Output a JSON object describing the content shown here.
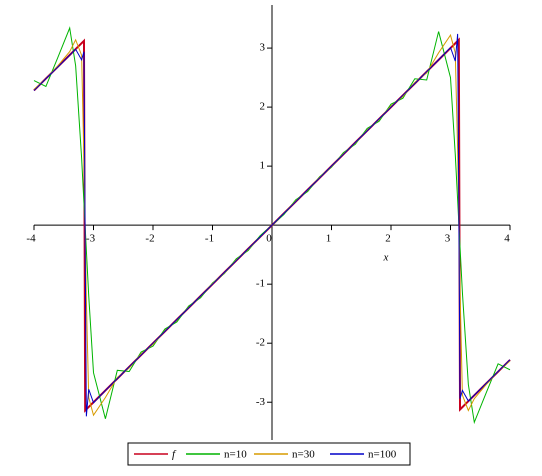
{
  "chart_data": {
    "type": "line",
    "x_label": "x",
    "x": [
      -4,
      -3.8,
      -3.6,
      -3.4,
      -3.3,
      -3.2,
      -3.16,
      -3.14,
      -3.12,
      -3.08,
      -3,
      -2.8,
      -2.6,
      -2.4,
      -2.2,
      -2,
      -1.8,
      -1.6,
      -1.4,
      -1.2,
      -1,
      -0.8,
      -0.6,
      -0.4,
      -0.2,
      0,
      0.2,
      0.4,
      0.6,
      0.8,
      1,
      1.2,
      1.4,
      1.6,
      1.8,
      2,
      2.2,
      2.4,
      2.6,
      2.8,
      3,
      3.08,
      3.12,
      3.14,
      3.16,
      3.2,
      3.3,
      3.4,
      3.6,
      3.8,
      4
    ],
    "series": [
      {
        "name": "f",
        "color": "#c8001e",
        "values": [
          2.283,
          2.483,
          2.683,
          2.883,
          2.983,
          3.083,
          3.123,
          -3.14,
          -3.12,
          -3.08,
          -3,
          -2.8,
          -2.6,
          -2.4,
          -2.2,
          -2,
          -1.8,
          -1.6,
          -1.4,
          -1.2,
          -1,
          -0.8,
          -0.6,
          -0.4,
          -0.2,
          0,
          0.2,
          0.4,
          0.6,
          0.8,
          1,
          1.2,
          1.4,
          1.6,
          1.8,
          2,
          2.2,
          2.4,
          2.6,
          2.8,
          3,
          3.08,
          3.12,
          3.14,
          -3.123,
          -3.083,
          -2.983,
          -2.883,
          -2.683,
          -2.483,
          -2.283
        ]
      },
      {
        "name": "n=10",
        "color": "#00b400",
        "values": [
          2.45,
          2.35,
          2.84,
          3.34,
          2.7,
          1.14,
          0.37,
          -0.03,
          -0.43,
          -1.2,
          -2.5,
          -3.28,
          -2.46,
          -2.48,
          -2.15,
          -2.05,
          -1.76,
          -1.64,
          -1.37,
          -1.23,
          -0.98,
          -0.82,
          -0.57,
          -0.43,
          -0.18,
          0,
          0.18,
          0.43,
          0.57,
          0.82,
          0.98,
          1.23,
          1.37,
          1.64,
          1.76,
          2.05,
          2.15,
          2.48,
          2.46,
          3.28,
          2.5,
          1.2,
          0.43,
          0.03,
          -0.37,
          -1.14,
          -2.7,
          -3.34,
          -2.84,
          -2.35,
          -2.45
        ]
      },
      {
        "name": "n=30",
        "color": "#d79b00",
        "values": [
          2.3,
          2.48,
          2.7,
          2.94,
          3.14,
          2.88,
          1.08,
          -0.1,
          -1.27,
          -2.92,
          -3.22,
          -2.92,
          -2.58,
          -2.42,
          -2.18,
          -2.02,
          -1.79,
          -1.61,
          -1.39,
          -1.21,
          -0.99,
          -0.81,
          -0.59,
          -0.41,
          -0.2,
          0,
          0.2,
          0.41,
          0.59,
          0.81,
          0.99,
          1.21,
          1.39,
          1.61,
          1.79,
          2.02,
          2.18,
          2.42,
          2.58,
          2.92,
          3.22,
          2.92,
          1.27,
          0.1,
          -1.08,
          -2.88,
          -3.14,
          -2.94,
          -2.7,
          -2.48,
          -2.3
        ]
      },
      {
        "name": "n=100",
        "color": "#0000c8",
        "values": [
          2.28,
          2.48,
          2.68,
          2.88,
          2.98,
          2.8,
          2.94,
          -0.32,
          -3.24,
          -2.78,
          -3.01,
          -2.8,
          -2.6,
          -2.4,
          -2.2,
          -2,
          -1.8,
          -1.6,
          -1.4,
          -1.2,
          -1,
          -0.8,
          -0.6,
          -0.4,
          -0.2,
          0,
          0.2,
          0.4,
          0.6,
          0.8,
          1,
          1.2,
          1.4,
          1.6,
          1.8,
          2,
          2.2,
          2.4,
          2.6,
          2.8,
          3.01,
          2.78,
          3.24,
          0.32,
          -2.94,
          -2.8,
          -2.98,
          -2.88,
          -2.68,
          -2.48,
          -2.28
        ]
      }
    ],
    "xlim": [
      -4,
      4
    ],
    "ylim": [
      -3.64,
      3.73
    ],
    "xticks": [
      -4,
      -3,
      -2,
      -1,
      0,
      1,
      2,
      3,
      4
    ],
    "yticks": [
      -3,
      -2,
      -1,
      1,
      2,
      3
    ]
  }
}
